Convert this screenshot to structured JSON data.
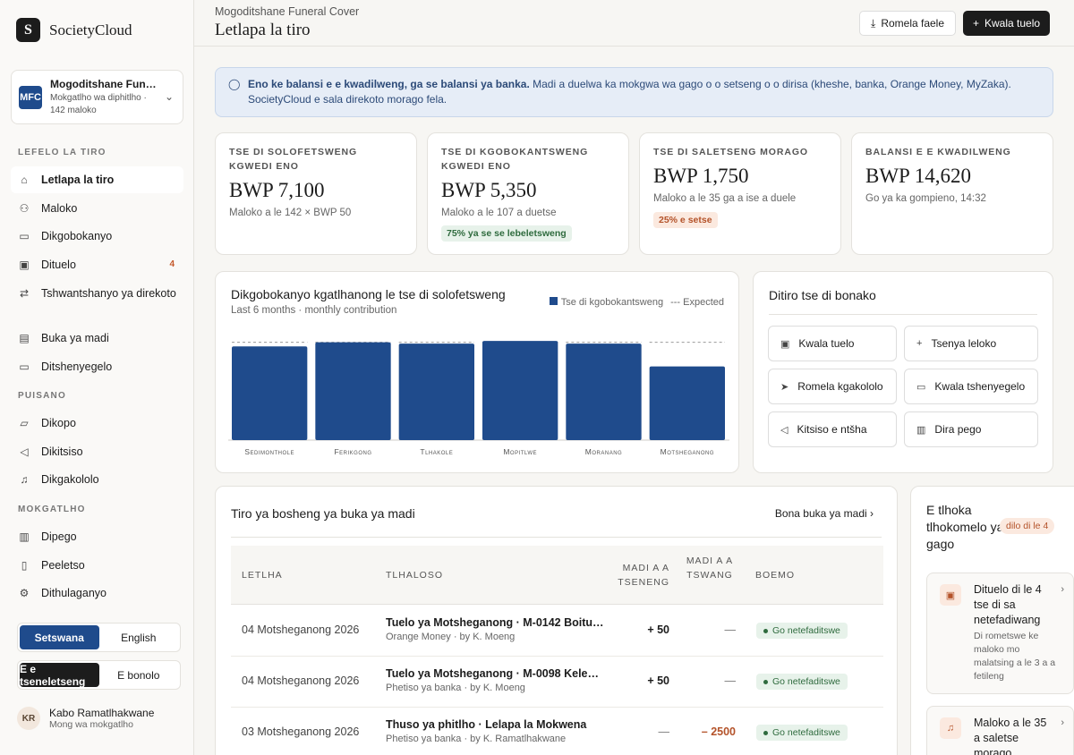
{
  "brand": {
    "logo": "S",
    "name": "SocietyCloud"
  },
  "org": {
    "avatar": "MFC",
    "name": "Mogoditshane Funeral Cover",
    "sub": "Mokgatlho wa diphitlho · 142 maloko"
  },
  "nav": {
    "section1": "LEFELO LA TIRO",
    "items1": [
      {
        "label": "Letlapa la tiro",
        "icon": "home-icon"
      },
      {
        "label": "Maloko",
        "icon": "users-icon"
      },
      {
        "label": "Dikgobokanyo",
        "icon": "card-icon"
      },
      {
        "label": "Dituelo",
        "icon": "cash-icon",
        "badge": "4"
      },
      {
        "label": "Tshwantshanyo ya direkoto",
        "icon": "swap-icon"
      },
      {
        "label": "Buka ya madi",
        "icon": "book-icon"
      },
      {
        "label": "Ditshenyegelo",
        "icon": "receipt-icon"
      }
    ],
    "section2": "PUISANO",
    "items2": [
      {
        "label": "Dikopo",
        "icon": "inbox-icon"
      },
      {
        "label": "Dikitsiso",
        "icon": "megaphone-icon"
      },
      {
        "label": "Dikgakololo",
        "icon": "bell-icon"
      }
    ],
    "section3": "MOKGATLHO",
    "items3": [
      {
        "label": "Dipego",
        "icon": "bar-chart-icon"
      },
      {
        "label": "Peeletso",
        "icon": "document-icon"
      },
      {
        "label": "Dithulaganyo",
        "icon": "gear-icon"
      }
    ]
  },
  "language": {
    "option1": "Setswana",
    "option2": "English"
  },
  "theme": {
    "option1": "E e tseneletseng",
    "option2": "E bonolo"
  },
  "user": {
    "initials": "KR",
    "name": "Kabo Ramatlhakwane",
    "role": "Mong wa mokgatlho"
  },
  "header": {
    "subtitle": "Mogoditshane Funeral Cover",
    "title": "Letlapa la tiro",
    "export_label": "Romela faele",
    "record_label": "Kwala tuelo"
  },
  "info": {
    "bold": "Eno ke balansi e e kwadilweng, ga se balansi ya banka.",
    "text": " Madi a duelwa ka mokgwa wa gago o o setseng o o dirisa (kheshe, banka, Orange Money, MyZaka). SocietyCloud e sala direkoto morago fela."
  },
  "kpis": [
    {
      "label": "TSE DI SOLOFETSWENG KGWEDI ENO",
      "value": "BWP 7,100",
      "sub": "Maloko a le 142 × BWP 50"
    },
    {
      "label": "TSE DI KGOBOKANTSWENG KGWEDI ENO",
      "value": "BWP 5,350",
      "sub": "Maloko a le 107 a duetse",
      "pill": "75% ya se se lebeletsweng"
    },
    {
      "label": "TSE DI SALETSENG MORAGO",
      "value": "BWP 1,750",
      "sub": "Maloko a le 35 ga a ise a duele",
      "pill": "25% e setse"
    },
    {
      "label": "BALANSI E E KWADILWENG",
      "value": "BWP 14,620",
      "sub": "Go ya ka gompieno, 14:32"
    }
  ],
  "chart_data": {
    "type": "bar",
    "title": "Dikgobokanyo kgatlhanong le tse di solofetsweng",
    "subtitle": "Last 6 months · monthly contribution",
    "categories": [
      "Sedimonthole",
      "Ferikgong",
      "Tlhakole",
      "Mopitlwe",
      "Moranang",
      "Motsheganong"
    ],
    "series": [
      {
        "name": "Tse di kgobokantsweng",
        "values": [
          6800,
          7100,
          7000,
          7200,
          7000,
          5350
        ]
      },
      {
        "name": "Expected",
        "values": [
          7100,
          7100,
          7100,
          7100,
          7100,
          7100
        ]
      }
    ],
    "ylim": [
      0,
      7400
    ],
    "colors": {
      "bar": "#1f4b8c",
      "expected": "#999999"
    }
  },
  "quick": {
    "title": "Ditiro tse di bonako",
    "items": [
      {
        "label": "Kwala tuelo",
        "icon": "cash-icon"
      },
      {
        "label": "Tsenya leloko",
        "icon": "plus-icon"
      },
      {
        "label": "Romela kgakololo",
        "icon": "send-icon"
      },
      {
        "label": "Kwala tshenyegelo",
        "icon": "card-icon"
      },
      {
        "label": "Kitsiso e ntšha",
        "icon": "megaphone-icon"
      },
      {
        "label": "Dira pego",
        "icon": "bar-chart-icon"
      }
    ]
  },
  "ledger": {
    "title": "Tiro ya bosheng ya buka ya madi",
    "link": "Bona buka ya madi",
    "headers": {
      "date": "LETLHA",
      "desc": "TLHALOSO",
      "in": "MADI A A TSENENG",
      "out": "MADI A A TSWANG",
      "status": "BOEMO"
    },
    "rows": [
      {
        "date": "04 Motsheganong 2026",
        "title": "Tuelo ya Motsheganong · M-0142 Boitumelo",
        "sub": "Orange Money · by K. Moeng",
        "in": "+ 50",
        "out": "—",
        "status": "Go netefaditswe"
      },
      {
        "date": "04 Motsheganong 2026",
        "title": "Tuelo ya Motsheganong · M-0098 Kelebogile",
        "sub": "Phetiso ya banka · by K. Moeng",
        "in": "+ 50",
        "out": "—",
        "status": "Go netefaditswe"
      },
      {
        "date": "03 Motsheganong 2026",
        "title": "Thuso ya phitlho · Lelapa la Mokwena",
        "sub": "Phetiso ya banka · by K. Ramatlhakwane",
        "in": "—",
        "out": "– 2500",
        "status": "Go netefaditswe"
      }
    ]
  },
  "attention": {
    "title": "E tlhoka tlhokomelo ya gago",
    "badge": "dilo di le 4",
    "items": [
      {
        "title": "Dituelo di le 4 tse di sa netefadiwang",
        "sub": "Di rometswe ke maloko mo malatsing a le 3 a a fetileng",
        "icon": "cash-icon"
      },
      {
        "title": "Maloko a le 35 a saletse morago",
        "sub": "",
        "icon": "bell-icon"
      }
    ]
  }
}
